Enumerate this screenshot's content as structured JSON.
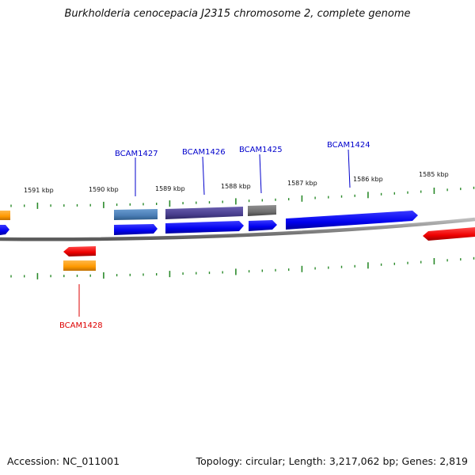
{
  "title": "Burkholderia cenocepacia J2315 chromosome 2, complete genome",
  "footer": {
    "accession": "Accession: NC_011001",
    "summary": "Topology: circular; Length: 3,217,062 bp; Genes: 2,819"
  },
  "colors": {
    "gene_forward": "#0000ee",
    "gene_reverse": "#ee0000",
    "gene_label_forward": "#0000cc",
    "gene_label_reverse": "#dd0000",
    "backbone": "#8a8a8a",
    "tick": "#2a8a2a",
    "orange_feature": "#ff9900",
    "steel_feature": "#4a7db5",
    "slate_feature": "#4a3f8f",
    "gray_feature": "#707070"
  },
  "scale": {
    "labels": [
      "1591 kbp",
      "1590 kbp",
      "1589 kbp",
      "1588 kbp",
      "1587 kbp",
      "1586 kbp",
      "1585 kbp"
    ]
  },
  "genes": [
    {
      "name": "BCAM1427",
      "strand": "forward",
      "color": "#0000ee"
    },
    {
      "name": "BCAM1426",
      "strand": "forward",
      "color": "#0000ee"
    },
    {
      "name": "BCAM1425",
      "strand": "forward",
      "color": "#0000ee"
    },
    {
      "name": "BCAM1424",
      "strand": "forward",
      "color": "#0000ee"
    },
    {
      "name": "BCAM1428",
      "strand": "reverse",
      "color": "#ee0000"
    }
  ]
}
